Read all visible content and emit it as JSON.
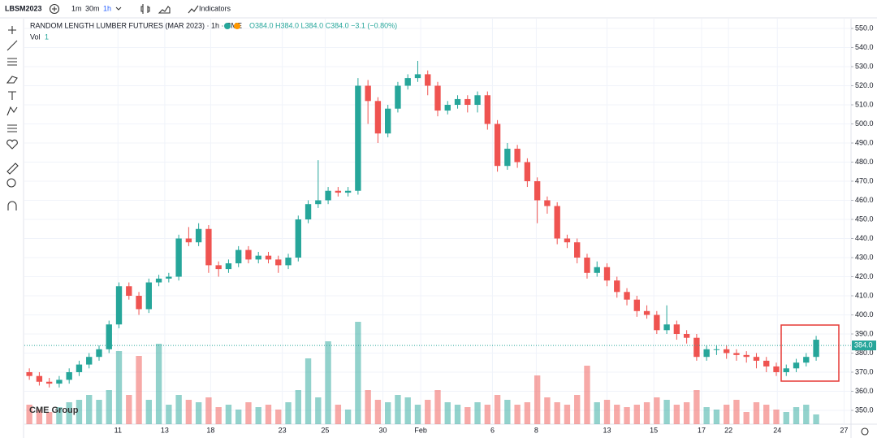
{
  "toolbar": {
    "symbol": "LBSM2023",
    "intervals": [
      "1m",
      "30m",
      "1h"
    ],
    "indicators": "Indicators"
  },
  "chart_data": {
    "type": "candlestick",
    "title": "RANDOM LENGTH LUMBER FUTURES (MAR 2023) · 1h · CME",
    "legend_values": "O384.0 H384.0 L384.0 C384.0 −3.1 (−0.80%)",
    "volume_label": "Vol",
    "volume_value": "1",
    "watermark": "CME Group",
    "up_color": "#26a69a",
    "down_color": "#ef5350",
    "last_price": {
      "value": 384,
      "label": "384.0"
    },
    "xlim": [
      -0.5,
      82.5
    ],
    "xticks": [
      {
        "value": 8.9,
        "label": "11"
      },
      {
        "value": 13.6,
        "label": "13"
      },
      {
        "value": 18.2,
        "label": "18"
      },
      {
        "value": 25.4,
        "label": "23"
      },
      {
        "value": 29.7,
        "label": "25"
      },
      {
        "value": 35.5,
        "label": "30"
      },
      {
        "value": 39.3,
        "label": "Feb"
      },
      {
        "value": 46.5,
        "label": "6"
      },
      {
        "value": 50.9,
        "label": "8"
      },
      {
        "value": 58.0,
        "label": "13"
      },
      {
        "value": 62.7,
        "label": "15"
      },
      {
        "value": 67.5,
        "label": "17"
      },
      {
        "value": 70.2,
        "label": "22"
      },
      {
        "value": 75.1,
        "label": "24"
      },
      {
        "value": 81.8,
        "label": "27"
      }
    ],
    "ylim": [
      350,
      550
    ],
    "yticks": [
      {
        "value": 350,
        "label": "350.0"
      },
      {
        "value": 360,
        "label": "360.0"
      },
      {
        "value": 370,
        "label": "370.0"
      },
      {
        "value": 380,
        "label": "380.0"
      },
      {
        "value": 390,
        "label": "390.0"
      },
      {
        "value": 400,
        "label": "400.0"
      },
      {
        "value": 410,
        "label": "410.0"
      },
      {
        "value": 420,
        "label": "420.0"
      },
      {
        "value": 430,
        "label": "430.0"
      },
      {
        "value": 440,
        "label": "440.0"
      },
      {
        "value": 450,
        "label": "450.0"
      },
      {
        "value": 460,
        "label": "460.0"
      },
      {
        "value": 470,
        "label": "470.0"
      },
      {
        "value": 480,
        "label": "480.0"
      },
      {
        "value": 490,
        "label": "490.0"
      },
      {
        "value": 500,
        "label": "500.0"
      },
      {
        "value": 510,
        "label": "510.0"
      },
      {
        "value": 520,
        "label": "520.0"
      },
      {
        "value": 530,
        "label": "530.0"
      },
      {
        "value": 540,
        "label": "540.0"
      },
      {
        "value": 550,
        "label": "550.0"
      }
    ],
    "vlim": [
      0,
      50
    ],
    "open": [
      370,
      368,
      365,
      364,
      366,
      370,
      374,
      378,
      382,
      395,
      415,
      410,
      403,
      417,
      419,
      420,
      440,
      438,
      445,
      426,
      424,
      427,
      434,
      429,
      431,
      429,
      426,
      430,
      450,
      458,
      460,
      465,
      464,
      465,
      520,
      512,
      495,
      508,
      520,
      524,
      526,
      520,
      507,
      510,
      513,
      510,
      515,
      500,
      478,
      487,
      480,
      470,
      460,
      457,
      440,
      438,
      430,
      422,
      425,
      418,
      412,
      408,
      402,
      400,
      392,
      395,
      390,
      388,
      378,
      382,
      382,
      380,
      379,
      378,
      376,
      373,
      370,
      372,
      375,
      378
    ],
    "high": [
      372,
      370,
      367,
      368,
      372,
      376,
      380,
      384,
      397,
      417,
      417,
      412,
      419,
      421,
      422,
      442,
      446,
      448,
      447,
      428,
      429,
      436,
      436,
      433,
      433,
      431,
      432,
      452,
      460,
      481,
      467,
      467,
      467,
      524,
      523,
      514,
      510,
      522,
      526,
      533,
      528,
      522,
      512,
      515,
      515,
      517,
      517,
      502,
      490,
      489,
      482,
      472,
      462,
      459,
      442,
      440,
      432,
      428,
      427,
      420,
      414,
      410,
      405,
      402,
      405,
      397,
      392,
      390,
      384,
      384,
      384,
      382,
      381,
      380,
      378,
      375,
      374,
      377,
      380,
      389
    ],
    "low": [
      366,
      363,
      362,
      362,
      364,
      368,
      372,
      376,
      380,
      393,
      408,
      400,
      401,
      415,
      417,
      418,
      436,
      436,
      422,
      420,
      422,
      425,
      427,
      427,
      427,
      422,
      424,
      428,
      448,
      456,
      458,
      462,
      462,
      463,
      500,
      490,
      493,
      506,
      518,
      522,
      515,
      504,
      505,
      508,
      506,
      506,
      497,
      475,
      476,
      477,
      467,
      448,
      453,
      437,
      435,
      427,
      419,
      420,
      415,
      409,
      405,
      399,
      398,
      390,
      390,
      387,
      385,
      376,
      376,
      379,
      377,
      376,
      375,
      372,
      370,
      368,
      368,
      370,
      373,
      376
    ],
    "close": [
      368,
      365,
      364,
      366,
      370,
      374,
      378,
      382,
      395,
      415,
      410,
      403,
      417,
      419,
      420,
      440,
      438,
      445,
      426,
      424,
      427,
      434,
      429,
      431,
      429,
      426,
      430,
      450,
      458,
      460,
      465,
      464,
      465,
      520,
      512,
      495,
      508,
      520,
      524,
      526,
      520,
      507,
      510,
      513,
      510,
      515,
      500,
      478,
      487,
      480,
      470,
      460,
      457,
      440,
      438,
      430,
      422,
      425,
      418,
      412,
      408,
      402,
      400,
      392,
      395,
      390,
      388,
      378,
      382,
      382,
      380,
      379,
      378,
      376,
      373,
      370,
      372,
      375,
      378,
      387
    ],
    "volume": [
      8,
      6,
      5,
      7,
      9,
      10,
      12,
      10,
      14,
      30,
      12,
      28,
      10,
      33,
      8,
      12,
      10,
      9,
      11,
      7,
      8,
      6,
      9,
      7,
      8,
      6,
      9,
      14,
      27,
      11,
      34,
      8,
      6,
      42,
      14,
      10,
      9,
      12,
      11,
      8,
      10,
      14,
      9,
      8,
      7,
      9,
      8,
      12,
      10,
      8,
      9,
      20,
      11,
      9,
      8,
      12,
      24,
      9,
      10,
      8,
      7,
      8,
      9,
      11,
      10,
      8,
      9,
      14,
      7,
      6,
      8,
      10,
      5,
      9,
      8,
      6,
      5,
      7,
      8,
      4
    ]
  }
}
